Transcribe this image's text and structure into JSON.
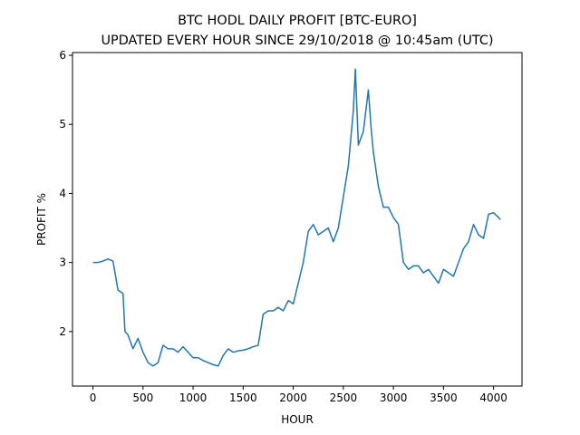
{
  "chart_data": {
    "type": "line",
    "title": "BTC HODL DAILY PROFIT [BTC-EURO]",
    "subtitle": "UPDATED EVERY HOUR SINCE 29/10/2018 @ 10:45am (UTC)",
    "x_label": "HOUR",
    "y_label": "PROFIT %",
    "x": [
      0,
      50,
      100,
      150,
      200,
      250,
      300,
      320,
      350,
      400,
      450,
      500,
      550,
      600,
      650,
      700,
      750,
      800,
      850,
      900,
      950,
      1000,
      1050,
      1100,
      1150,
      1200,
      1250,
      1300,
      1350,
      1400,
      1450,
      1500,
      1550,
      1600,
      1650,
      1700,
      1750,
      1800,
      1850,
      1900,
      1950,
      2000,
      2050,
      2100,
      2150,
      2200,
      2250,
      2300,
      2350,
      2400,
      2450,
      2500,
      2550,
      2600,
      2620,
      2650,
      2700,
      2750,
      2780,
      2800,
      2850,
      2900,
      2950,
      3000,
      3050,
      3100,
      3150,
      3200,
      3250,
      3300,
      3350,
      3400,
      3450,
      3500,
      3550,
      3600,
      3650,
      3700,
      3750,
      3800,
      3850,
      3900,
      3950,
      4000,
      4050,
      4070
    ],
    "series": [
      {
        "name": "profit",
        "color": "#1f77b4",
        "values": [
          3.0,
          3.0,
          3.02,
          3.05,
          3.02,
          2.6,
          2.55,
          2.0,
          1.95,
          1.75,
          1.9,
          1.7,
          1.55,
          1.5,
          1.55,
          1.8,
          1.75,
          1.75,
          1.7,
          1.78,
          1.7,
          1.62,
          1.62,
          1.58,
          1.55,
          1.52,
          1.5,
          1.65,
          1.75,
          1.7,
          1.72,
          1.73,
          1.75,
          1.78,
          1.8,
          2.25,
          2.3,
          2.3,
          2.35,
          2.3,
          2.45,
          2.4,
          2.7,
          3.0,
          3.45,
          3.55,
          3.4,
          3.45,
          3.5,
          3.3,
          3.5,
          3.95,
          4.4,
          5.2,
          5.8,
          4.7,
          4.9,
          5.5,
          4.9,
          4.6,
          4.1,
          3.8,
          3.8,
          3.65,
          3.55,
          3.0,
          2.9,
          2.95,
          2.95,
          2.85,
          2.9,
          2.8,
          2.7,
          2.9,
          2.85,
          2.8,
          3.0,
          3.2,
          3.3,
          3.55,
          3.4,
          3.35,
          3.7,
          3.72,
          3.65,
          3.62
        ]
      }
    ],
    "xlim": [
      -204,
      4284
    ],
    "xticks": [
      0,
      500,
      1000,
      1500,
      2000,
      2500,
      3000,
      3500,
      4000
    ],
    "ylim": [
      1.21,
      6.04
    ],
    "yticks": [
      2,
      3,
      4,
      5,
      6
    ]
  }
}
